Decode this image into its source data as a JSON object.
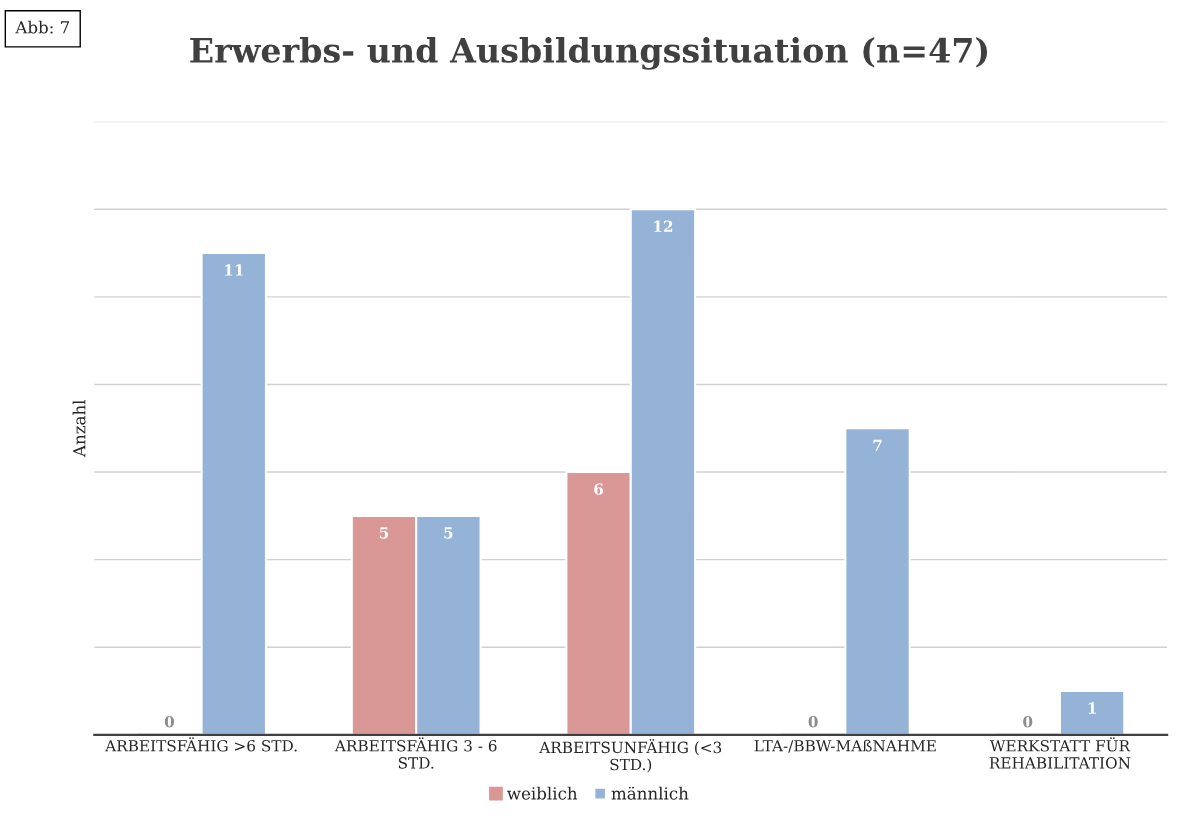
{
  "chart_data": {
    "type": "bar",
    "title": "Erwerbs- und Ausbildungssituation (n=47)",
    "ylabel": "Anzahl",
    "annotations": [
      "Abb: 7"
    ],
    "categories": [
      "ARBEITSFÄHIG >6 STD.",
      "ARBEITSFÄHIG 3 - 6 STD.",
      "ARBEITSUNFÄHIG (<3 STD.)",
      "LTA-/BBW-MAßNAHME",
      "WERKSTATT FÜR REHABILITATION"
    ],
    "series": [
      {
        "name": "weiblich",
        "color": "#d99795",
        "values": [
          0,
          5,
          6,
          0,
          0
        ]
      },
      {
        "name": "männlich",
        "color": "#95b3d7",
        "values": [
          11,
          5,
          12,
          7,
          1
        ]
      }
    ],
    "ylim": [
      0,
      14
    ],
    "yticks": [
      {
        "value": 0,
        "label": null
      },
      {
        "value": 2,
        "label": null
      },
      {
        "value": 4,
        "label": null
      },
      {
        "value": 6,
        "label": null
      },
      {
        "value": 8,
        "label": null
      },
      {
        "value": 10,
        "label": null
      },
      {
        "value": 12,
        "label": null
      },
      {
        "value": 14,
        "label": null
      }
    ],
    "tick_labels": "x",
    "grid": "y",
    "legend": "bottom",
    "data_labels": true
  }
}
